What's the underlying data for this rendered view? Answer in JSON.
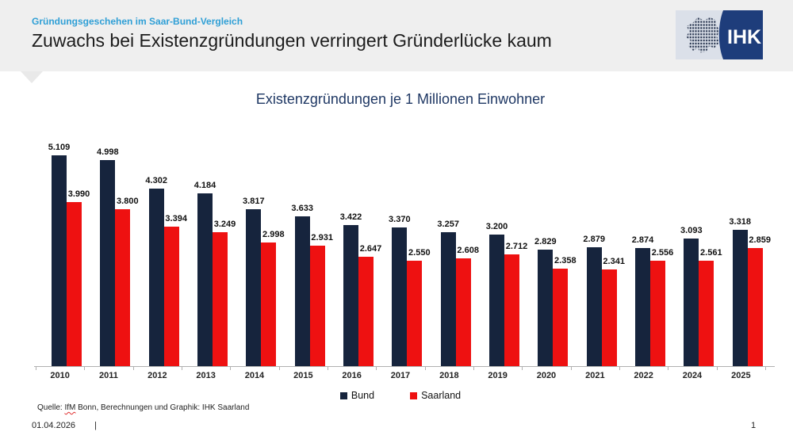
{
  "header": {
    "eyebrow": "Gründungsgeschehen im Saar-Bund-Vergleich",
    "title": "Zuwachs bei Existenzgründungen verringert Gründerlücke kaum",
    "logo_text": "IHK"
  },
  "chart_data": {
    "type": "bar",
    "title": "Existenzgründungen je 1 Millionen Einwohner",
    "categories": [
      "2010",
      "2011",
      "2012",
      "2013",
      "2014",
      "2015",
      "2016",
      "2017",
      "2018",
      "2019",
      "2020",
      "2021",
      "2022",
      "2024",
      "2025"
    ],
    "series": [
      {
        "name": "Bund",
        "color": "#16243d",
        "values": [
          5109,
          4998,
          4302,
          4184,
          3817,
          3633,
          3422,
          3370,
          3257,
          3200,
          2829,
          2879,
          2874,
          3093,
          3318
        ]
      },
      {
        "name": "Saarland",
        "color": "#ee1111",
        "values": [
          3990,
          3800,
          3394,
          3249,
          2998,
          2931,
          2647,
          2550,
          2608,
          2712,
          2358,
          2341,
          2556,
          2561,
          2859
        ]
      }
    ],
    "value_labels": "shown above each bar, German thousands format (e.g. 5.109)",
    "xlabel": "",
    "ylabel": "",
    "ylim": [
      0,
      5500
    ],
    "grid": false,
    "legend_position": "bottom"
  },
  "footer": {
    "source_prefix": "Quelle: ",
    "source_highlight": "IfM",
    "source_rest": " Bonn, Berechnungen und Graphik: IHK Saarland",
    "date": "01.04.2026",
    "separator": "|",
    "page_number": "1"
  },
  "colors": {
    "accent_blue": "#2f9fd6",
    "header_bg": "#efefef",
    "chart_title": "#1f3864",
    "bund_bar": "#16243d",
    "saarland_bar": "#ee1111",
    "axis": "#b1b1b1",
    "logo_panel": "#dbe0e9",
    "logo_blue": "#1e3d7b",
    "logo_dots": "#27344e"
  }
}
